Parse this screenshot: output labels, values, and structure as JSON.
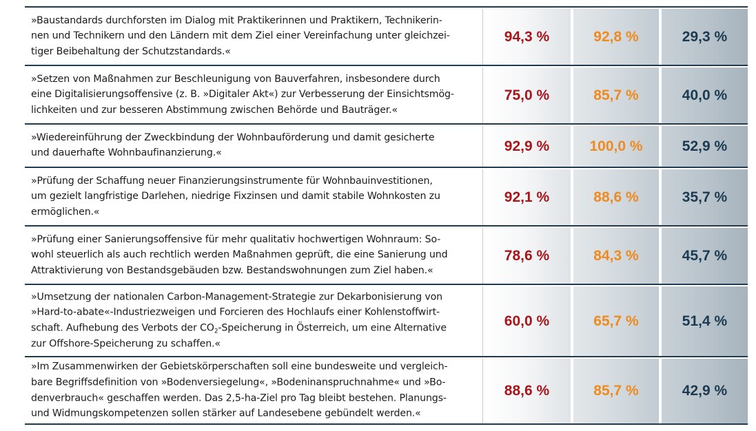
{
  "rows": [
    {
      "text": "»Baustandards durchforsten im Dialog mit Praktikerinnen und Praktikern, Technikerin-\nnen und Technikern und den Ländern mit dem Ziel einer Vereinfachung unter gleichzei-\ntiger Beibehaltung der Schutzstandards.«",
      "v1": "94,3 %",
      "v2": "92,8 %",
      "v3": "29,3 %"
    },
    {
      "text": "»Setzen von Maßnahmen zur Beschleunigung von Bauverfahren, insbesondere durch\neine Digitalisierungsoffensive (z. B. »Digitaler Akt«) zur Verbesserung der Einsichtsmög-\nlichkeiten und zur besseren Abstimmung zwischen Behörde und Bauträger.«",
      "v1": "75,0 %",
      "v2": "85,7 %",
      "v3": "40,0 %"
    },
    {
      "text": "»Wiedereinführung der Zweckbindung der Wohnbauförderung und damit gesicherte\nund dauerhafte Wohnbaufinanzierung.«",
      "v1": "92,9 %",
      "v2": "100,0 %",
      "v3": "52,9 %"
    },
    {
      "text": "»Prüfung der Schaffung neuer Finanzierungsinstrumente für Wohnbauinvestitionen,\num gezielt langfristige Darlehen, niedrige Fixzinsen und damit stabile Wohnkosten zu\nermöglichen.«",
      "v1": "92,1 %",
      "v2": "88,6 %",
      "v3": "35,7 %"
    },
    {
      "text": "»Prüfung einer Sanierungsoffensive für mehr qualitativ hochwertigen Wohnraum: So-\nwohl steuerlich als auch rechtlich werden Maßnahmen geprüft, die eine Sanierung und\nAttraktivierung von Bestandsgebäuden bzw. Bestandswohnungen zum Ziel haben.«",
      "v1": "78,6 %",
      "v2": "84,3 %",
      "v3": "45,7 %"
    },
    {
      "text_pre": "»Umsetzung der nationalen Carbon-Management-Strategie zur Dekarbonisierung von\n»Hard-to-abate«-Industriezweigen und Forcieren des Hochlaufs einer Kohlenstoffwirt-\nschaft. Aufhebung des Verbots der CO",
      "text_sub": "2",
      "text_post": "-Speicherung in Österreich, um eine Alternative\nzur Offshore-Speicherung zu schaffen.«",
      "v1": "60,0 %",
      "v2": "65,7 %",
      "v3": "51,4 %"
    },
    {
      "text": "»Im Zusammenwirken der Gebietskörperschaften soll eine bundesweite und vergleich-\nbare Begriffsdefinition von »Bodenversiegelung«, »Bodeninanspruchnahme« und »Bo-\ndenverbrauch« geschaffen werden. Das 2,5-ha-Ziel pro Tag bleibt bestehen. Planungs-\nund Widmungskompetenzen sollen stärker auf Landesebene gebündelt werden.«",
      "v1": "88,6 %",
      "v2": "85,7 %",
      "v3": "42,9 %"
    }
  ]
}
